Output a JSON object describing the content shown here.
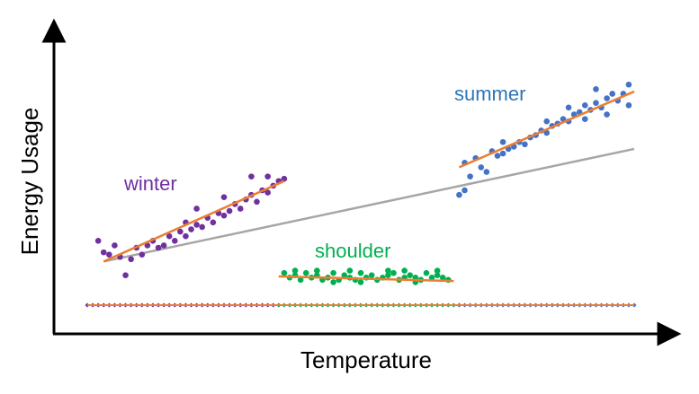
{
  "colors": {
    "background": "#ffffff",
    "axis": "#000000",
    "fit_line": "#ed7d31",
    "overall_line": "#a6a6a6",
    "winter": "#7030a0",
    "summer": "#4472c4",
    "shoulder": "#00b050",
    "summer_label": "#2e75b6",
    "baseline_blue": "#4472c4",
    "baseline_purple": "#7030a0",
    "baseline_green": "#00b050"
  },
  "chart_data": {
    "type": "scatter",
    "title": "",
    "xlabel": "Temperature",
    "ylabel": "Energy Usage",
    "xlim": [
      0,
      100
    ],
    "ylim": [
      0,
      100
    ],
    "grid": false,
    "legend": "none",
    "ticks": "none",
    "series": [
      {
        "name": "winter",
        "color": "#7030a0",
        "points": [
          [
            2,
            28
          ],
          [
            3,
            23
          ],
          [
            4,
            22
          ],
          [
            5,
            26
          ],
          [
            6,
            21
          ],
          [
            7,
            13
          ],
          [
            8,
            20
          ],
          [
            9,
            25
          ],
          [
            10,
            22
          ],
          [
            11,
            26
          ],
          [
            12,
            28
          ],
          [
            13,
            25
          ],
          [
            14,
            26
          ],
          [
            15,
            30
          ],
          [
            16,
            28
          ],
          [
            17,
            32
          ],
          [
            18,
            30
          ],
          [
            19,
            33
          ],
          [
            20,
            35
          ],
          [
            21,
            34
          ],
          [
            22,
            38
          ],
          [
            23,
            36
          ],
          [
            24,
            40
          ],
          [
            25,
            39
          ],
          [
            26,
            41
          ],
          [
            27,
            44
          ],
          [
            28,
            42
          ],
          [
            29,
            46
          ],
          [
            30,
            48
          ],
          [
            31,
            45
          ],
          [
            32,
            50
          ],
          [
            33,
            49
          ],
          [
            34,
            52
          ],
          [
            35,
            54
          ],
          [
            36,
            55
          ],
          [
            30,
            56
          ],
          [
            25,
            47
          ],
          [
            20,
            42
          ],
          [
            33,
            56
          ],
          [
            18,
            36
          ]
        ],
        "fit": [
          [
            3,
            19
          ],
          [
            36,
            54
          ]
        ],
        "label": "winter"
      },
      {
        "name": "summer",
        "color": "#4472c4",
        "points": [
          [
            69,
            62
          ],
          [
            70,
            56
          ],
          [
            71,
            64
          ],
          [
            72,
            60
          ],
          [
            73,
            58
          ],
          [
            74,
            67
          ],
          [
            75,
            65
          ],
          [
            76,
            66
          ],
          [
            77,
            68
          ],
          [
            78,
            69
          ],
          [
            79,
            71
          ],
          [
            80,
            70
          ],
          [
            81,
            73
          ],
          [
            82,
            74
          ],
          [
            83,
            76
          ],
          [
            84,
            75
          ],
          [
            85,
            78
          ],
          [
            86,
            79
          ],
          [
            87,
            81
          ],
          [
            88,
            80
          ],
          [
            89,
            83
          ],
          [
            90,
            84
          ],
          [
            91,
            87
          ],
          [
            92,
            85
          ],
          [
            93,
            88
          ],
          [
            94,
            86
          ],
          [
            95,
            90
          ],
          [
            96,
            92
          ],
          [
            97,
            89
          ],
          [
            98,
            92
          ],
          [
            99,
            96
          ],
          [
            93,
            94
          ],
          [
            95,
            83
          ],
          [
            99,
            87
          ],
          [
            68,
            48
          ],
          [
            69,
            50
          ],
          [
            76,
            71
          ],
          [
            84,
            80
          ],
          [
            88,
            86
          ],
          [
            91,
            81
          ]
        ],
        "fit": [
          [
            68,
            60
          ],
          [
            100,
            93
          ]
        ],
        "label": "summer"
      },
      {
        "name": "shoulder",
        "color": "#00b050",
        "points": [
          [
            37,
            12
          ],
          [
            38,
            13
          ],
          [
            39,
            11
          ],
          [
            40,
            14
          ],
          [
            41,
            12
          ],
          [
            42,
            13
          ],
          [
            43,
            11
          ],
          [
            44,
            12
          ],
          [
            45,
            14
          ],
          [
            46,
            11
          ],
          [
            47,
            13
          ],
          [
            48,
            12
          ],
          [
            49,
            11
          ],
          [
            50,
            14
          ],
          [
            51,
            12
          ],
          [
            52,
            13
          ],
          [
            53,
            11
          ],
          [
            54,
            12
          ],
          [
            55,
            13
          ],
          [
            56,
            14
          ],
          [
            57,
            11
          ],
          [
            58,
            12
          ],
          [
            59,
            13
          ],
          [
            60,
            12
          ],
          [
            61,
            11
          ],
          [
            62,
            14
          ],
          [
            63,
            12
          ],
          [
            64,
            13
          ],
          [
            65,
            12
          ],
          [
            66,
            11
          ],
          [
            36,
            14
          ],
          [
            38,
            15
          ],
          [
            42,
            15
          ],
          [
            45,
            10
          ],
          [
            50,
            10
          ],
          [
            55,
            15
          ],
          [
            60,
            10
          ],
          [
            64,
            15
          ],
          [
            48,
            15
          ],
          [
            58,
            15
          ]
        ],
        "fit": [
          [
            35,
            12.5
          ],
          [
            67,
            10.5
          ]
        ],
        "label": "shoulder"
      }
    ],
    "overall_fit": [
      [
        3,
        19
      ],
      [
        100,
        68
      ]
    ],
    "baseline": {
      "y": 0,
      "x_range": [
        0,
        100
      ],
      "segments": [
        {
          "name": "winter",
          "from": 0,
          "to": 35
        },
        {
          "name": "shoulder",
          "from": 35,
          "to": 68
        },
        {
          "name": "summer",
          "from": 68,
          "to": 100
        }
      ]
    }
  }
}
